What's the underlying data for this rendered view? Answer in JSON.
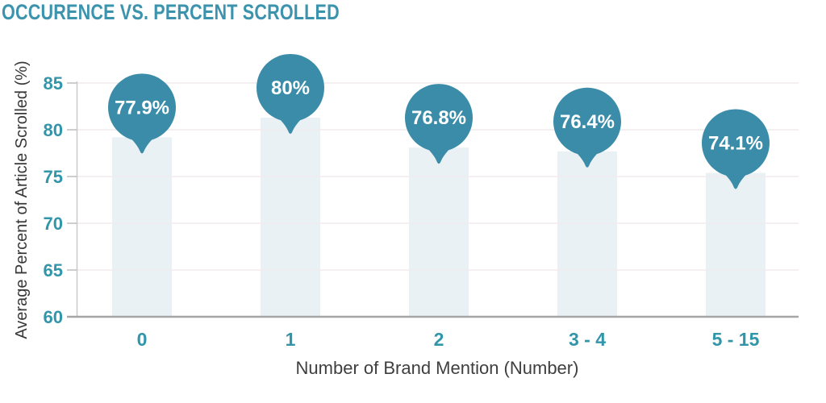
{
  "title": "OCCURENCE VS. PERCENT SCROLLED",
  "colors": {
    "title_teal": "#3C93AD",
    "bubble_teal": "#3B8CA8",
    "tick_teal": "#3296AA",
    "bar_fill": "#E9F1F5",
    "gridline": "#F0ECED",
    "axis_line_bottom": "#A6A6A6",
    "axis_line_left": "#C9C9C9",
    "tick_mark": "#BDBDBD",
    "text_dark": "#3F3F3F",
    "bubble_text": "#FFFFFF",
    "background": "#FFFFFF"
  },
  "chart_data": {
    "type": "bar",
    "title": "OCCURENCE VS. PERCENT SCROLLED",
    "categories": [
      "0",
      "1",
      "2",
      "3 - 4",
      "5 - 15"
    ],
    "values": [
      77.9,
      80,
      76.8,
      76.4,
      74.1
    ],
    "value_labels": [
      "77.9%",
      "80%",
      "76.8%",
      "76.4%",
      "74.1%"
    ],
    "xlabel": "Number of Brand Mention (Number)",
    "ylabel": "Average Percent of Article Scrolled (%)",
    "ylim": [
      60,
      85
    ],
    "yticks": [
      60,
      65,
      70,
      75,
      80,
      85
    ],
    "grid": true,
    "legend": false,
    "annotation_style": "teal circle bubble with pointer above each bar"
  }
}
